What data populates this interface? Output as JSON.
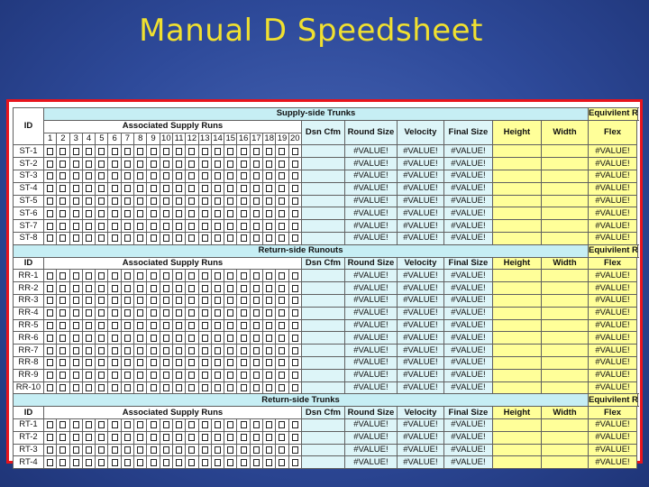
{
  "title": "Manual D Speedsheet",
  "headers": {
    "id": "ID",
    "associated_supply_runs": "Associated Supply Runs",
    "dsn_cfm": "Dsn Cfm",
    "round_size": "Round Size",
    "velocity": "Velocity",
    "final_size": "Final Size",
    "equiv_rect_duct": "Equivilent Rect. Duct",
    "equiv": "Equivilent",
    "height": "Height",
    "width": "Width",
    "flex": "Flex"
  },
  "run_numbers": [
    "1",
    "2",
    "3",
    "4",
    "5",
    "6",
    "7",
    "8",
    "9",
    "10",
    "11",
    "12",
    "13",
    "14",
    "15",
    "16",
    "17",
    "18",
    "19",
    "20"
  ],
  "error_value": "#VALUE!",
  "sections": [
    {
      "title": "Supply-side Trunks",
      "rows": [
        "ST-1",
        "ST-2",
        "ST-3",
        "ST-4",
        "ST-5",
        "ST-6",
        "ST-7",
        "ST-8"
      ]
    },
    {
      "title": "Return-side Runouts",
      "rows": [
        "RR-1",
        "RR-2",
        "RR-3",
        "RR-4",
        "RR-5",
        "RR-6",
        "RR-7",
        "RR-8",
        "RR-9",
        "RR-10"
      ]
    },
    {
      "title": "Return-side Trunks",
      "rows": [
        "RT-1",
        "RT-2",
        "RT-3",
        "RT-4"
      ]
    }
  ]
}
